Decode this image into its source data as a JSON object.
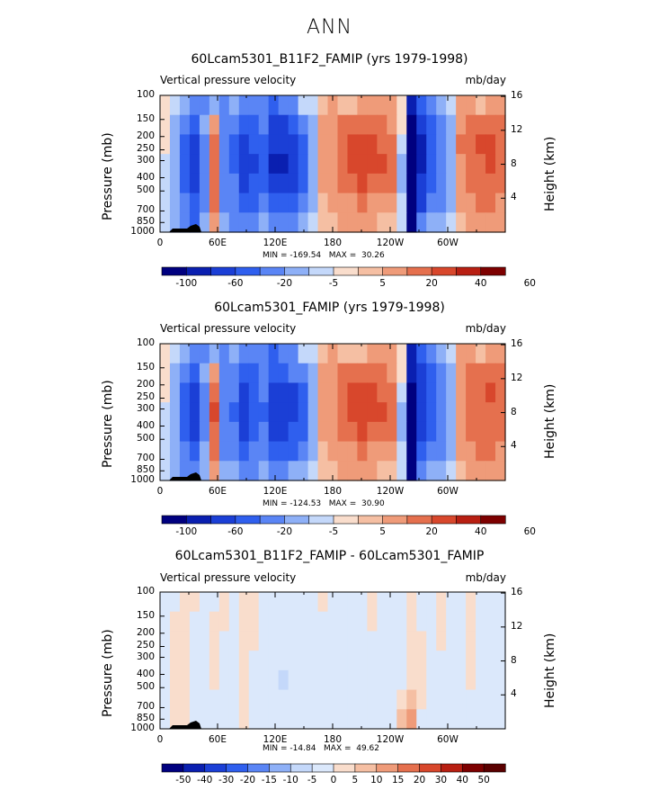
{
  "figure_title": "ANN",
  "chart_data": [
    {
      "type": "heatmap",
      "title": "60Lcam5301_B11F2_FAMIP (yrs 1979-1998)",
      "variable": "Vertical pressure velocity",
      "units": "mb/day",
      "ylabel": "Pressure (mb)",
      "y2label": "Height (km)",
      "yticks": [
        "100",
        "150",
        "200",
        "250",
        "300",
        "400",
        "500",
        "700",
        "850",
        "1000"
      ],
      "y2ticks": [
        "16",
        "12",
        "8",
        "4"
      ],
      "xticks": [
        "0",
        "60E",
        "120E",
        "180",
        "120W",
        "60W"
      ],
      "min": "-169.54",
      "max": "30.26",
      "contour_levels": [
        "-100",
        "-80",
        "-60",
        "-40",
        "-20",
        "-10",
        "-5",
        "0",
        "5",
        "10",
        "20",
        "30",
        "40",
        "60"
      ],
      "colorbar_labels": [
        "-100",
        "-60",
        "-20",
        "-5",
        "5",
        "20",
        "40",
        "60"
      ],
      "field": [
        [
          -3,
          -5,
          -12,
          -30,
          -28,
          -18,
          -22,
          -10,
          -38,
          -26,
          -24,
          -48,
          -30,
          -22,
          -8,
          -5,
          4,
          6,
          5,
          3,
          6,
          9,
          7,
          6,
          -3,
          -90,
          -50,
          -26,
          -12,
          -8,
          7,
          9,
          5,
          7,
          6
        ],
        [
          -4,
          -10,
          -32,
          -58,
          -12,
          6,
          -20,
          -30,
          -55,
          -46,
          -34,
          -62,
          -60,
          -40,
          -34,
          -10,
          6,
          8,
          12,
          14,
          16,
          18,
          13,
          7,
          -4,
          -100,
          -70,
          -44,
          -20,
          -10,
          9,
          13,
          16,
          18,
          14
        ],
        [
          -4,
          -14,
          -42,
          -66,
          -20,
          18,
          -24,
          -40,
          -70,
          -56,
          -40,
          -75,
          -74,
          -66,
          -46,
          -14,
          6,
          10,
          14,
          22,
          24,
          24,
          20,
          12,
          -8,
          -120,
          -80,
          -52,
          -30,
          -15,
          12,
          16,
          22,
          26,
          18
        ],
        [
          -6,
          -18,
          -46,
          -70,
          -24,
          20,
          -30,
          -46,
          -76,
          -60,
          -46,
          -80,
          -80,
          -70,
          -50,
          -18,
          8,
          10,
          16,
          22,
          26,
          26,
          22,
          14,
          -10,
          -140,
          -80,
          -50,
          -30,
          -16,
          10,
          16,
          20,
          22,
          20
        ],
        [
          -8,
          -18,
          -42,
          -62,
          -22,
          14,
          -28,
          -38,
          -66,
          -52,
          -40,
          -70,
          -70,
          -60,
          -42,
          -16,
          6,
          8,
          12,
          18,
          22,
          20,
          16,
          12,
          -10,
          -150,
          -70,
          -44,
          -28,
          -14,
          8,
          14,
          18,
          20,
          16
        ],
        [
          -8,
          -16,
          -30,
          -46,
          -20,
          12,
          -22,
          -30,
          -52,
          -40,
          -30,
          -50,
          -50,
          -44,
          -30,
          -14,
          4,
          6,
          8,
          10,
          12,
          10,
          10,
          6,
          -8,
          -169,
          -60,
          -38,
          -24,
          -12,
          6,
          10,
          12,
          14,
          10
        ],
        [
          -6,
          -10,
          -30,
          -40,
          -14,
          6,
          -10,
          -20,
          -30,
          -24,
          -18,
          -28,
          -24,
          -20,
          -14,
          -8,
          2,
          4,
          6,
          6,
          6,
          6,
          4,
          4,
          -6,
          -130,
          -30,
          -18,
          -12,
          -6,
          4,
          6,
          8,
          8,
          6
        ]
      ]
    },
    {
      "type": "heatmap",
      "title": "60Lcam5301_FAMIP (yrs 1979-1998)",
      "variable": "Vertical pressure velocity",
      "units": "mb/day",
      "ylabel": "Pressure (mb)",
      "y2label": "Height (km)",
      "yticks": [
        "100",
        "150",
        "200",
        "250",
        "300",
        "400",
        "500",
        "700",
        "850",
        "1000"
      ],
      "y2ticks": [
        "16",
        "12",
        "8",
        "4"
      ],
      "xticks": [
        "0",
        "60E",
        "120E",
        "180",
        "120W",
        "60W"
      ],
      "min": "-124.53",
      "max": "30.90",
      "contour_levels": [
        "-100",
        "-80",
        "-60",
        "-40",
        "-20",
        "-10",
        "-5",
        "0",
        "5",
        "10",
        "20",
        "30",
        "40",
        "60"
      ],
      "colorbar_labels": [
        "-100",
        "-60",
        "-20",
        "-5",
        "5",
        "20",
        "40",
        "60"
      ],
      "field": [
        [
          -3,
          -5,
          -10,
          -26,
          -24,
          -16,
          -20,
          -10,
          -34,
          -24,
          -22,
          -44,
          -28,
          -20,
          -8,
          -5,
          4,
          6,
          5,
          3,
          5,
          8,
          7,
          6,
          -3,
          -80,
          -46,
          -24,
          -12,
          -8,
          6,
          9,
          5,
          6,
          6
        ],
        [
          -4,
          -10,
          -30,
          -54,
          -12,
          8,
          -20,
          -28,
          -52,
          -44,
          -32,
          -58,
          -56,
          -38,
          -32,
          -10,
          6,
          8,
          12,
          14,
          16,
          18,
          13,
          7,
          -4,
          -95,
          -66,
          -42,
          -20,
          -10,
          8,
          12,
          14,
          16,
          12
        ],
        [
          -4,
          -14,
          -40,
          -62,
          -20,
          20,
          -24,
          -38,
          -66,
          -54,
          -38,
          -70,
          -70,
          -62,
          -44,
          -14,
          6,
          10,
          14,
          22,
          24,
          24,
          20,
          12,
          -8,
          -110,
          -76,
          -50,
          -28,
          -15,
          10,
          14,
          20,
          24,
          18
        ],
        [
          -6,
          -18,
          -44,
          -66,
          -24,
          22,
          -28,
          -44,
          -72,
          -58,
          -44,
          -76,
          -76,
          -66,
          -48,
          -18,
          8,
          10,
          16,
          22,
          26,
          26,
          22,
          14,
          -10,
          -120,
          -76,
          -48,
          -28,
          -16,
          10,
          14,
          18,
          20,
          18
        ],
        [
          -8,
          -18,
          -40,
          -60,
          -22,
          16,
          -26,
          -36,
          -62,
          -50,
          -38,
          -66,
          -66,
          -56,
          -40,
          -16,
          6,
          8,
          12,
          18,
          22,
          20,
          16,
          12,
          -10,
          -124,
          -66,
          -42,
          -26,
          -14,
          8,
          12,
          16,
          18,
          14
        ],
        [
          -8,
          -16,
          -28,
          -44,
          -18,
          12,
          -20,
          -28,
          -48,
          -38,
          -28,
          -46,
          -46,
          -40,
          -28,
          -14,
          4,
          6,
          8,
          10,
          12,
          10,
          10,
          6,
          -8,
          -110,
          -56,
          -36,
          -22,
          -12,
          6,
          10,
          12,
          12,
          10
        ],
        [
          -6,
          -10,
          -28,
          -38,
          -14,
          6,
          -10,
          -18,
          -28,
          -22,
          -16,
          -26,
          -22,
          -18,
          -12,
          -8,
          2,
          4,
          6,
          6,
          6,
          6,
          4,
          4,
          -6,
          -100,
          -28,
          -16,
          -10,
          -6,
          4,
          6,
          8,
          8,
          6
        ]
      ]
    },
    {
      "type": "heatmap",
      "title": "60Lcam5301_B11F2_FAMIP - 60Lcam5301_FAMIP",
      "variable": "Vertical pressure velocity",
      "units": "mb/day",
      "ylabel": "Pressure (mb)",
      "y2label": "Height (km)",
      "yticks": [
        "100",
        "150",
        "200",
        "250",
        "300",
        "400",
        "500",
        "700",
        "850",
        "1000"
      ],
      "y2ticks": [
        "16",
        "12",
        "8",
        "4"
      ],
      "xticks": [
        "0",
        "60E",
        "120E",
        "180",
        "120W",
        "60W"
      ],
      "min": "-14.84",
      "max": "49.62",
      "contour_levels": [
        "-50",
        "-40",
        "-30",
        "-20",
        "-15",
        "-10",
        "-5",
        "0",
        "5",
        "10",
        "15",
        "20",
        "30",
        "40",
        "50"
      ],
      "colorbar_labels": [
        "-50",
        "-40",
        "-30",
        "-20",
        "-15",
        "-10",
        "-5",
        "0",
        "5",
        "10",
        "15",
        "20",
        "30",
        "40",
        "50"
      ],
      "field": [
        [
          -2,
          -2,
          2,
          3,
          -2,
          -2,
          2,
          -2,
          3,
          2,
          -2,
          -2,
          -2,
          -2,
          -2,
          -2,
          2,
          -2,
          -2,
          -2,
          -2,
          2,
          -2,
          -2,
          -2,
          2,
          -2,
          -2,
          2,
          -2,
          -2,
          2,
          -2,
          -2,
          -2
        ],
        [
          -2,
          2,
          3,
          -2,
          -2,
          2,
          2,
          -2,
          3,
          2,
          -2,
          -2,
          -2,
          -2,
          -2,
          -2,
          -2,
          -2,
          -2,
          -2,
          -2,
          2,
          -2,
          -2,
          -2,
          2,
          -2,
          -2,
          2,
          -2,
          -2,
          2,
          -2,
          -2,
          -2
        ],
        [
          -2,
          2,
          3,
          -2,
          -2,
          2,
          -2,
          -2,
          3,
          2,
          -2,
          -2,
          -2,
          -2,
          -2,
          -2,
          -2,
          -2,
          -2,
          -2,
          -2,
          -2,
          -2,
          -2,
          -2,
          2,
          2,
          -2,
          2,
          -2,
          -2,
          2,
          -2,
          -2,
          -2
        ],
        [
          -2,
          2,
          3,
          -2,
          -2,
          2,
          -2,
          -2,
          3,
          -2,
          -2,
          -2,
          -4,
          -2,
          -2,
          -2,
          -2,
          -2,
          -2,
          -2,
          -2,
          -2,
          -2,
          -2,
          -2,
          3,
          2,
          -2,
          -2,
          -2,
          -2,
          2,
          -2,
          -2,
          -2
        ],
        [
          -2,
          2,
          2,
          -2,
          -2,
          2,
          -2,
          -2,
          2,
          -2,
          -2,
          -2,
          -6,
          -2,
          -2,
          -2,
          -2,
          -2,
          -2,
          -2,
          -2,
          -2,
          -2,
          -2,
          -2,
          2,
          2,
          -2,
          -2,
          -2,
          -2,
          2,
          -2,
          -2,
          -2
        ],
        [
          -2,
          2,
          2,
          -2,
          -2,
          -2,
          -2,
          -2,
          2,
          -2,
          -2,
          -2,
          -2,
          -2,
          -2,
          -2,
          -2,
          -2,
          -2,
          -2,
          -2,
          -2,
          -2,
          -2,
          2,
          6,
          2,
          -2,
          -2,
          -2,
          -2,
          -2,
          -2,
          -2,
          -2
        ],
        [
          -2,
          2,
          2,
          -2,
          -2,
          -2,
          -2,
          -2,
          2,
          -2,
          -2,
          -2,
          -2,
          -2,
          -2,
          -2,
          -2,
          -2,
          -2,
          -2,
          -2,
          -2,
          -2,
          -2,
          6,
          12,
          -2,
          -2,
          -2,
          -2,
          -2,
          -2,
          -2,
          -2,
          -2
        ]
      ]
    }
  ]
}
